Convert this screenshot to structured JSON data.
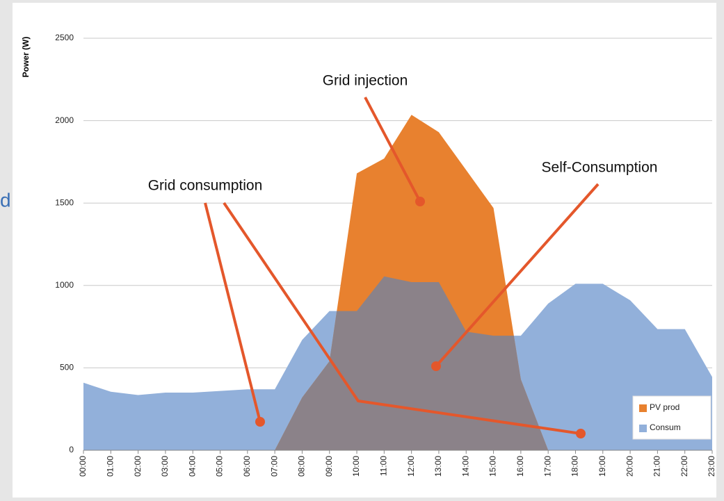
{
  "slide_fragment": "d",
  "chart_data": {
    "type": "area",
    "y_label": "Power (W)",
    "annotations": [
      "Grid injection",
      "Self-Consumption",
      "Grid consumption"
    ],
    "categories": [
      "00:00",
      "01:00",
      "02:00",
      "03:00",
      "04:00",
      "05:00",
      "06:00",
      "07:00",
      "08:00",
      "09:00",
      "10:00",
      "11:00",
      "12:00",
      "13:00",
      "14:00",
      "15:00",
      "16:00",
      "17:00",
      "18:00",
      "19:00",
      "20:00",
      "21:00",
      "22:00",
      "23:00"
    ],
    "series": [
      {
        "name": "PV prod",
        "color": "#e8812f",
        "values": [
          0,
          0,
          0,
          0,
          0,
          0,
          0,
          0,
          320,
          540,
          1680,
          1770,
          2035,
          1930,
          1700,
          1470,
          430,
          0,
          0,
          0,
          0,
          0,
          0,
          0
        ]
      },
      {
        "name": "Consum",
        "color": "#92b0da",
        "values": [
          410,
          355,
          335,
          350,
          350,
          360,
          370,
          370,
          670,
          845,
          845,
          1055,
          1020,
          1020,
          720,
          695,
          695,
          890,
          1010,
          1010,
          910,
          735,
          735,
          445
        ]
      }
    ],
    "overlap_color": "#8b8289",
    "ylim": [
      0,
      2500
    ],
    "yticks": [
      0,
      500,
      1000,
      1500,
      2000,
      2500
    ],
    "grid": true,
    "legend": "lower right"
  }
}
